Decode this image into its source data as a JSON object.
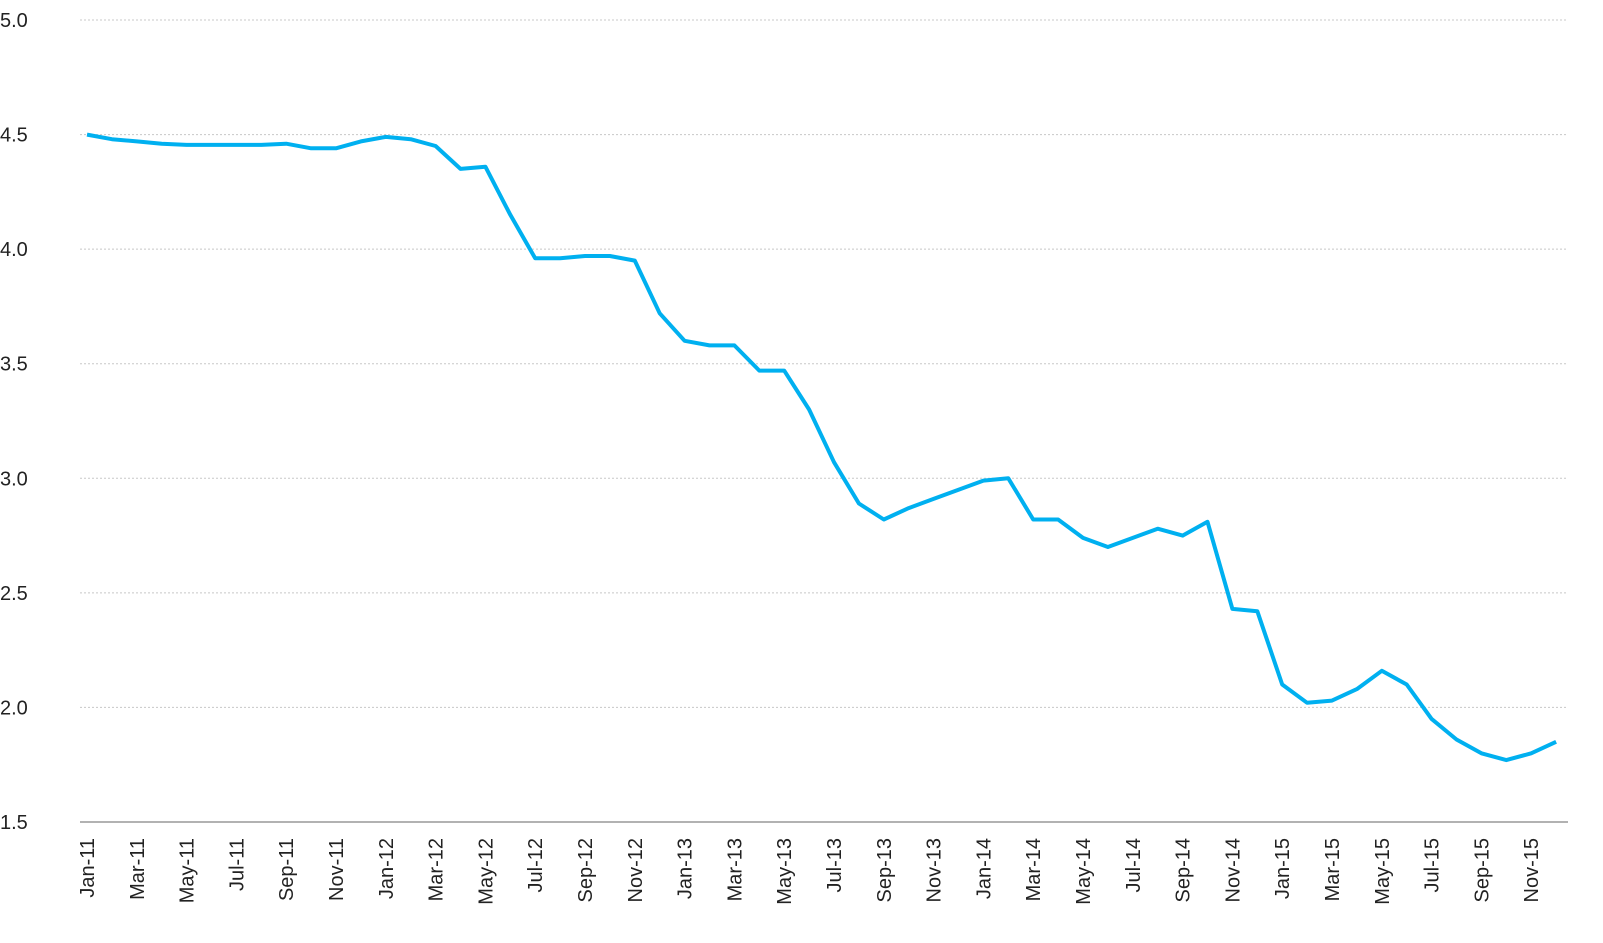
{
  "chart_data": {
    "type": "line",
    "categories": [
      "Jan-11",
      null,
      "Mar-11",
      null,
      "May-11",
      null,
      "Jul-11",
      null,
      "Sep-11",
      null,
      "Nov-11",
      null,
      "Jan-12",
      null,
      "Mar-12",
      null,
      "May-12",
      null,
      "Jul-12",
      null,
      "Sep-12",
      null,
      "Nov-12",
      null,
      "Jan-13",
      null,
      "Mar-13",
      null,
      "May-13",
      null,
      "Jul-13",
      null,
      "Sep-13",
      null,
      "Nov-13",
      null,
      "Jan-14",
      null,
      "Mar-14",
      null,
      "May-14",
      null,
      "Jul-14",
      null,
      "Sep-14",
      null,
      "Nov-14",
      null,
      "Jan-15",
      null,
      "Mar-15",
      null,
      "May-15",
      null,
      "Jul-15",
      null,
      "Sep-15",
      null,
      "Nov-15",
      null
    ],
    "values": [
      4.5,
      4.48,
      4.47,
      4.46,
      4.455,
      4.455,
      4.455,
      4.455,
      4.46,
      4.44,
      4.44,
      4.47,
      4.49,
      4.48,
      4.45,
      4.35,
      4.36,
      4.15,
      3.96,
      3.96,
      3.97,
      3.97,
      3.95,
      3.72,
      3.6,
      3.58,
      3.58,
      3.47,
      3.47,
      3.3,
      3.07,
      2.89,
      2.82,
      2.87,
      2.91,
      2.95,
      2.99,
      3.0,
      2.82,
      2.82,
      2.74,
      2.7,
      2.74,
      2.78,
      2.75,
      2.81,
      2.43,
      2.42,
      2.1,
      2.02,
      2.03,
      2.08,
      2.16,
      2.1,
      1.95,
      1.86,
      1.8,
      1.77,
      1.8,
      1.85
    ],
    "color": "#00b0f0",
    "ylim": [
      1.5,
      5.0
    ],
    "yticks": [
      1.5,
      {
        "value": 2,
        "label": "2.0"
      },
      2.5,
      {
        "value": 3,
        "label": "3.0"
      },
      3.5,
      {
        "value": 4,
        "label": "4.0"
      },
      4.5,
      {
        "value": 5,
        "label": "5.0"
      }
    ],
    "grid": true
  }
}
